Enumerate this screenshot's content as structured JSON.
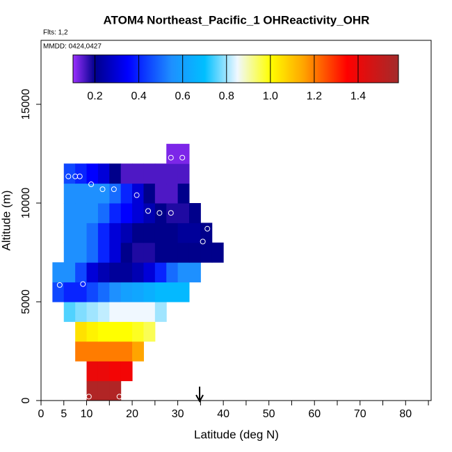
{
  "chart_data": {
    "type": "heatmap",
    "title": "ATOM4 Northeast_Pacific_1 OHReactivity_OHR",
    "flights_label": "Flts: 1,2",
    "dates_label": "MMDD: 0424,0427",
    "x_label": "Latitude (deg N)",
    "y_label": "Altitude (m)",
    "xlim": [
      0,
      85.6
    ],
    "ylim": [
      0,
      18240
    ],
    "xticks": [
      0,
      5,
      10,
      20,
      30,
      40,
      50,
      60,
      70,
      80
    ],
    "xminorticks": [
      15,
      25,
      35,
      45,
      55,
      65,
      75,
      85
    ],
    "yticks": [
      0,
      5000,
      10000,
      15000
    ],
    "clim": [
      0.1,
      1.584
    ],
    "cticks": [
      0.2,
      0.4,
      0.6,
      0.8,
      1.0,
      1.2,
      1.4
    ],
    "colorscale": [
      [
        0.1,
        "#9b30ff"
      ],
      [
        0.2,
        "#00008b"
      ],
      [
        0.35,
        "#0000ff"
      ],
      [
        0.55,
        "#1e90ff"
      ],
      [
        0.7,
        "#00bfff"
      ],
      [
        0.85,
        "#f0f8ff"
      ],
      [
        1.0,
        "#ffff00"
      ],
      [
        1.15,
        "#ffa500"
      ],
      [
        1.35,
        "#ff0000"
      ],
      [
        1.58,
        "#a52a2a"
      ]
    ],
    "x_edges": [
      2.5,
      5,
      7.5,
      10,
      12.5,
      15,
      17.5,
      20,
      22.5,
      25,
      27.5,
      30,
      32.5,
      35,
      37.5,
      40
    ],
    "y_edges": [
      0,
      1000,
      2000,
      3000,
      4000,
      5000,
      6000,
      7000,
      8000,
      9000,
      10000,
      11000,
      12000,
      13000
    ],
    "values": [
      [
        null,
        null,
        null,
        1.55,
        1.55,
        1.55,
        null,
        null,
        null,
        null,
        null,
        null,
        null,
        null,
        null
      ],
      [
        null,
        null,
        null,
        1.4,
        1.4,
        1.38,
        1.38,
        null,
        null,
        null,
        null,
        null,
        null,
        null,
        null
      ],
      [
        null,
        null,
        1.2,
        1.2,
        1.2,
        1.2,
        1.2,
        1.15,
        null,
        null,
        null,
        null,
        null,
        null,
        null
      ],
      [
        null,
        null,
        1.05,
        1.02,
        1.0,
        1.0,
        1.0,
        0.98,
        0.95,
        null,
        null,
        null,
        null,
        null,
        null
      ],
      [
        null,
        0.75,
        0.78,
        0.8,
        0.82,
        0.85,
        0.85,
        0.85,
        0.85,
        0.8,
        null,
        null,
        null,
        null,
        null
      ],
      [
        0.45,
        0.4,
        0.4,
        0.45,
        0.5,
        0.55,
        0.6,
        0.62,
        0.65,
        0.68,
        0.68,
        0.68,
        null,
        null,
        null
      ],
      [
        0.55,
        0.55,
        0.45,
        0.3,
        0.25,
        0.22,
        0.22,
        0.25,
        0.3,
        0.4,
        0.5,
        0.55,
        0.55,
        null,
        null
      ],
      [
        null,
        0.55,
        0.55,
        0.5,
        0.4,
        0.3,
        0.2,
        0.18,
        0.18,
        0.2,
        0.2,
        0.2,
        0.2,
        0.2,
        0.2
      ],
      [
        null,
        0.55,
        0.55,
        0.5,
        0.4,
        0.3,
        0.25,
        0.2,
        0.2,
        0.2,
        0.2,
        0.22,
        0.22,
        0.2,
        null
      ],
      [
        null,
        0.55,
        0.55,
        0.55,
        0.5,
        0.4,
        0.35,
        0.3,
        0.25,
        0.2,
        0.18,
        0.18,
        0.2,
        null,
        null
      ],
      [
        null,
        0.55,
        0.55,
        0.55,
        0.55,
        0.5,
        0.4,
        0.3,
        0.2,
        0.15,
        0.15,
        0.2,
        null,
        null,
        null
      ],
      [
        null,
        0.45,
        0.4,
        0.35,
        0.3,
        0.2,
        0.15,
        0.15,
        0.15,
        0.15,
        0.15,
        0.15,
        null,
        null,
        null
      ],
      [
        null,
        null,
        null,
        null,
        null,
        null,
        null,
        null,
        null,
        null,
        0.12,
        0.12,
        null,
        null,
        null
      ]
    ],
    "points": {
      "x": [
        4.1,
        9.2,
        6,
        7.5,
        8.5,
        11,
        13.5,
        16,
        21,
        23.5,
        26,
        28.5,
        28.5,
        31,
        36.5,
        35.5,
        10.5,
        17.2
      ],
      "y": [
        5850,
        5900,
        11350,
        11350,
        11350,
        10950,
        10700,
        10700,
        10400,
        9600,
        9500,
        9500,
        12300,
        12300,
        8700,
        8050,
        200,
        200
      ]
    },
    "marker_lat": 34.8
  }
}
